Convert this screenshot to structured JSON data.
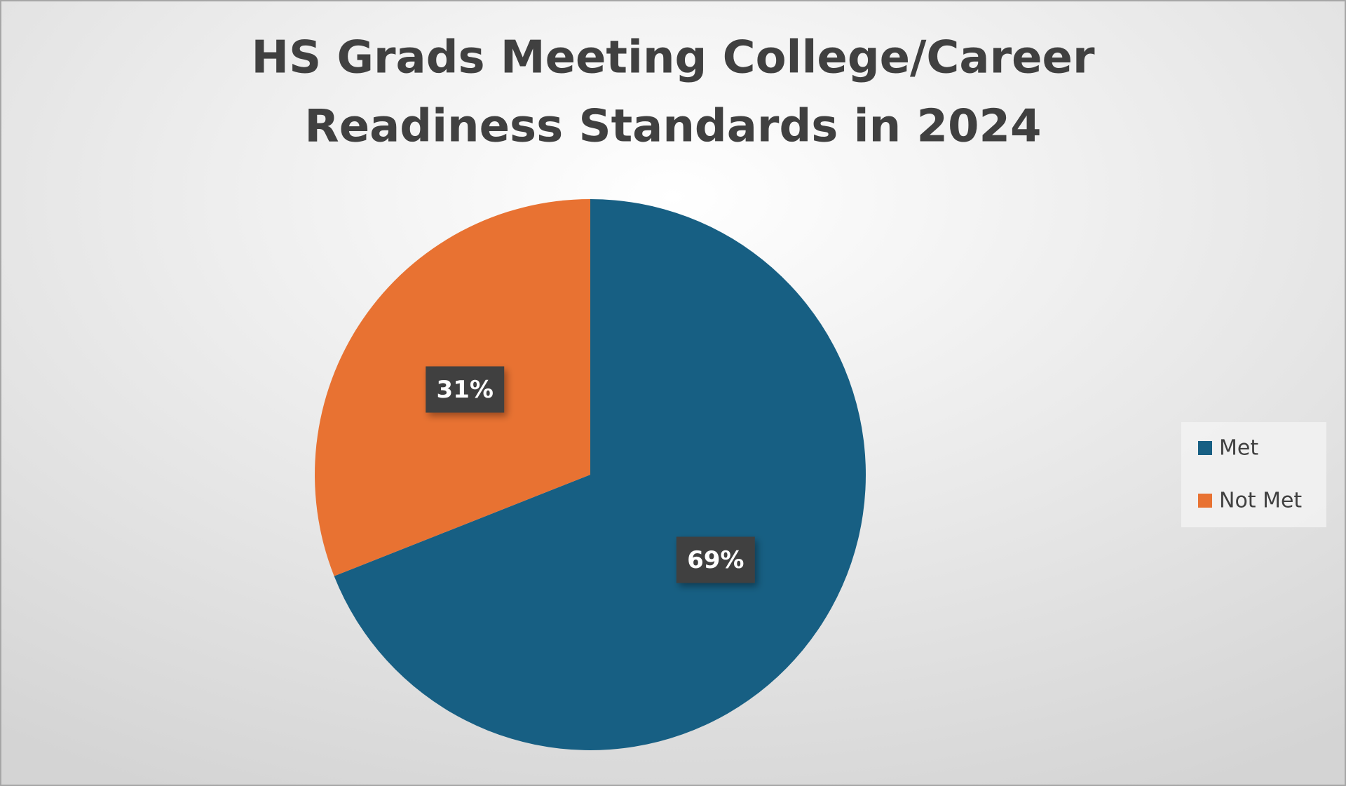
{
  "chart_data": {
    "type": "pie",
    "title": [
      "HS Grads Meeting College/Career",
      "Readiness Standards in 2024"
    ],
    "categories": [
      "Met",
      "Not Met"
    ],
    "values": [
      69,
      31
    ],
    "value_labels": [
      "69%",
      "31%"
    ],
    "colors": [
      "#175f83",
      "#e87232"
    ],
    "legend": "right"
  }
}
